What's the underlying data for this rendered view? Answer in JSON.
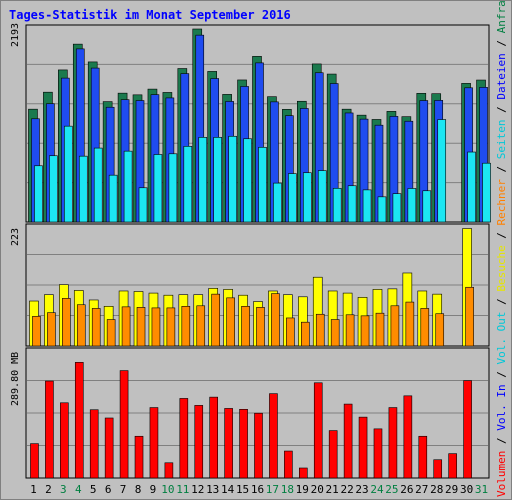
{
  "title": "Tages-Statistik im Monat September 2016",
  "chart_data": [
    {
      "type": "bar",
      "panel": "requests",
      "axis_max_label": "2193",
      "ymax": 2193,
      "categories": [
        "1",
        "2",
        "3",
        "4",
        "5",
        "6",
        "7",
        "8",
        "9",
        "10",
        "11",
        "12",
        "13",
        "14",
        "15",
        "16",
        "17",
        "18",
        "19",
        "20",
        "21",
        "22",
        "23",
        "24",
        "25",
        "26",
        "27",
        "28",
        "29",
        "30",
        "31"
      ],
      "weekend_days": [
        "3",
        "4",
        "10",
        "11",
        "17",
        "18",
        "24",
        "25",
        "31"
      ],
      "grid": true,
      "legend_labels": [
        "Seiten",
        "Dateien",
        "Anfragen"
      ],
      "legend_separator": "/",
      "series": [
        {
          "name": "Anfragen",
          "color": "#1b7a4e",
          "values": [
            1282,
            1475,
            1728,
            2021,
            1819,
            1368,
            1464,
            1445,
            1510,
            1472,
            1744,
            2193,
            1711,
            1450,
            1614,
            1882,
            1424,
            1280,
            1372,
            1796,
            1681,
            1282,
            1214,
            1165,
            1257,
            1197,
            1462,
            1458,
            0,
            1575,
            1613
          ]
        },
        {
          "name": "Dateien",
          "color": "#1f4cf0",
          "values": [
            1173,
            1344,
            1635,
            1967,
            1749,
            1304,
            1390,
            1380,
            1447,
            1410,
            1686,
            2123,
            1630,
            1370,
            1540,
            1808,
            1365,
            1208,
            1290,
            1696,
            1573,
            1239,
            1169,
            1100,
            1200,
            1145,
            1380,
            1382,
            0,
            1525,
            1530
          ]
        },
        {
          "name": "Seiten",
          "color": "#1ce6f2",
          "values": [
            639,
            753,
            1089,
            748,
            840,
            532,
            805,
            389,
            767,
            775,
            860,
            962,
            962,
            974,
            946,
            849,
            442,
            550,
            560,
            584,
            383,
            412,
            365,
            286,
            322,
            381,
            355,
            1164,
            0,
            795,
            668
          ]
        }
      ]
    },
    {
      "type": "bar",
      "panel": "visits",
      "axis_max_label": "223",
      "ymax": 223,
      "categories": [
        "1",
        "2",
        "3",
        "4",
        "5",
        "6",
        "7",
        "8",
        "9",
        "10",
        "11",
        "12",
        "13",
        "14",
        "15",
        "16",
        "17",
        "18",
        "19",
        "20",
        "21",
        "22",
        "23",
        "24",
        "25",
        "26",
        "27",
        "28",
        "29",
        "30",
        "31"
      ],
      "grid": true,
      "legend_labels": [
        "Besuche",
        "Rechner"
      ],
      "legend_separator": "/",
      "series": [
        {
          "name": "Besuche",
          "color": "#ffff00",
          "values": [
            85,
            97,
            116,
            105,
            87,
            75,
            104,
            103,
            100,
            96,
            97,
            97,
            109,
            107,
            96,
            84,
            104,
            97,
            93,
            130,
            104,
            100,
            92,
            107,
            108,
            138,
            104,
            98,
            0,
            222,
            0
          ]
        },
        {
          "name": "Rechner",
          "color": "#ff8c00",
          "values": [
            56,
            63,
            90,
            78,
            71,
            50,
            74,
            73,
            72,
            72,
            75,
            76,
            98,
            91,
            75,
            73,
            99,
            53,
            45,
            60,
            50,
            59,
            57,
            62,
            76,
            83,
            71,
            61,
            0,
            111,
            0
          ]
        }
      ]
    },
    {
      "type": "bar",
      "panel": "volume",
      "axis_max_label": "289.80 MB",
      "ymax": 289.8,
      "categories": [
        "1",
        "2",
        "3",
        "4",
        "5",
        "6",
        "7",
        "8",
        "9",
        "10",
        "11",
        "12",
        "13",
        "14",
        "15",
        "16",
        "17",
        "18",
        "19",
        "20",
        "21",
        "22",
        "23",
        "24",
        "25",
        "26",
        "27",
        "28",
        "29",
        "30",
        "31"
      ],
      "grid": true,
      "legend_labels": [
        "Volumen",
        "Vol. In",
        "Vol. Out"
      ],
      "legend_separator": "/",
      "series": [
        {
          "name": "Volumen",
          "color": "#ff0000",
          "values": [
            79,
            223,
            173,
            266,
            157,
            138,
            247,
            96,
            162,
            35,
            183,
            167,
            186,
            160,
            158,
            149,
            194,
            62,
            23,
            219,
            109,
            170,
            140,
            113,
            162,
            189,
            96,
            42,
            56,
            224,
            0
          ]
        }
      ]
    }
  ]
}
